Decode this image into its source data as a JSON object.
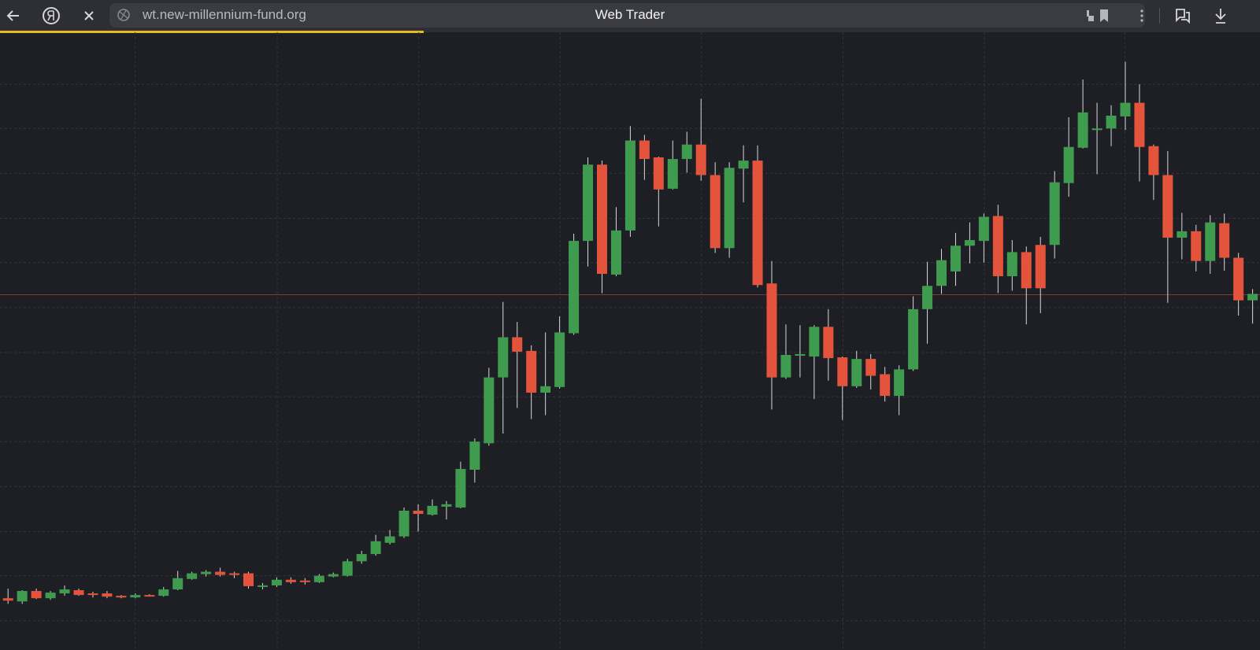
{
  "browser": {
    "url": "wt.new-millennium-fund.org",
    "tab_title": "Web Trader"
  },
  "chart_data": {
    "type": "candlestick",
    "open": [
      64,
      60,
      73,
      64,
      70,
      74,
      70,
      70,
      67,
      65,
      68,
      67,
      75,
      88,
      94,
      97,
      95,
      95,
      78,
      80,
      87,
      86,
      84,
      91,
      92,
      110,
      119,
      133,
      141,
      173,
      168,
      178,
      177,
      224,
      257,
      339,
      389,
      372,
      320,
      327,
      394,
      509,
      604,
      467,
      522,
      634,
      613,
      574,
      611,
      629,
      591,
      500,
      599,
      609,
      456,
      339,
      366,
      365,
      402,
      364,
      328,
      362,
      343,
      316,
      349,
      424,
      453,
      471,
      503,
      509,
      540,
      465,
      495,
      504,
      504,
      581,
      625,
      647,
      649,
      664,
      681,
      627,
      591,
      513,
      521,
      484,
      531,
      488,
      435
    ],
    "high": [
      76,
      74,
      76,
      73,
      80,
      76,
      72,
      73,
      68,
      70,
      69,
      78,
      98,
      97,
      99,
      102,
      97,
      97,
      83,
      90,
      90,
      89,
      94,
      96,
      113,
      123,
      143,
      149,
      177,
      181,
      187,
      185,
      234,
      263,
      351,
      433,
      408,
      379,
      395,
      415,
      518,
      613,
      609,
      551,
      652,
      641,
      614,
      634,
      645,
      686,
      607,
      607,
      628,
      628,
      484,
      405,
      404,
      404,
      424,
      365,
      372,
      368,
      352,
      354,
      440,
      483,
      499,
      519,
      532,
      543,
      554,
      510,
      502,
      514,
      596,
      663,
      710,
      681,
      678,
      732,
      704,
      629,
      621,
      544,
      529,
      541,
      543,
      494,
      449
    ],
    "low": [
      57,
      57,
      63,
      62,
      67,
      67,
      65,
      64,
      64,
      64,
      66,
      66,
      74,
      87,
      91,
      91,
      89,
      76,
      75,
      78,
      82,
      81,
      83,
      90,
      91,
      107,
      117,
      131,
      139,
      147,
      167,
      162,
      176,
      208,
      254,
      269,
      301,
      287,
      292,
      325,
      392,
      477,
      444,
      465,
      514,
      585,
      527,
      573,
      594,
      584,
      494,
      488,
      557,
      451,
      299,
      337,
      339,
      312,
      335,
      286,
      326,
      324,
      309,
      292,
      347,
      381,
      443,
      453,
      481,
      482,
      444,
      447,
      405,
      419,
      487,
      564,
      624,
      592,
      627,
      647,
      583,
      560,
      432,
      486,
      471,
      468,
      472,
      416,
      406
    ],
    "close": [
      61,
      73,
      64,
      71,
      75,
      68,
      68,
      66,
      65,
      68,
      67,
      75,
      89,
      95,
      97,
      93,
      93,
      79,
      80,
      87,
      84,
      84,
      92,
      94,
      110,
      119,
      135,
      141,
      173,
      169,
      179,
      181,
      225,
      259,
      339,
      389,
      371,
      320,
      328,
      395,
      509,
      604,
      468,
      522,
      634,
      611,
      573,
      611,
      629,
      591,
      500,
      600,
      609,
      454,
      339,
      367,
      368,
      402,
      363,
      328,
      362,
      341,
      316,
      349,
      424,
      453,
      485,
      503,
      510,
      539,
      465,
      495,
      450,
      450,
      582,
      626,
      669,
      649,
      665,
      681,
      626,
      591,
      513,
      521,
      484,
      532,
      488,
      435,
      443
    ],
    "up_color": "#3f9c4f",
    "down_color": "#e4543c",
    "ylim": [
      0,
      769
    ],
    "yticks": [
      36,
      92,
      147,
      203,
      259,
      315,
      370,
      426,
      482,
      537,
      593,
      649,
      704
    ],
    "grid": true,
    "price_line": 442,
    "price_line_color": "#7a3c36"
  }
}
